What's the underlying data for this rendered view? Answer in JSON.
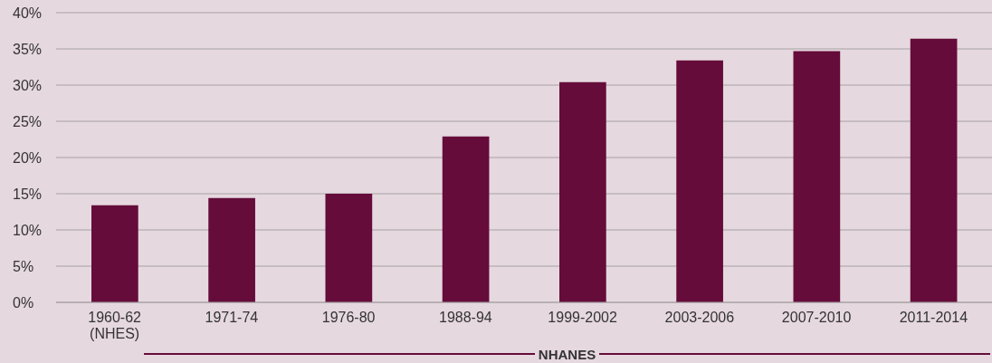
{
  "chart_data": {
    "type": "bar",
    "categories": [
      "1960-62 (NHES)",
      "1971-74",
      "1976-80",
      "1988-94",
      "1999-2002",
      "2003-2006",
      "2007-2010",
      "2011-2014"
    ],
    "values": [
      13.4,
      14.4,
      15.0,
      22.9,
      30.4,
      33.4,
      34.7,
      36.4
    ],
    "color": "#650c3a",
    "ylim": [
      0,
      40
    ],
    "yticks": [
      {
        "value": 0,
        "label": "0%"
      },
      {
        "value": 5,
        "label": "5%"
      },
      {
        "value": 10,
        "label": "10%"
      },
      {
        "value": 15,
        "label": "15%"
      },
      {
        "value": 20,
        "label": "20%"
      },
      {
        "value": 25,
        "label": "25%"
      },
      {
        "value": 30,
        "label": "30%"
      },
      {
        "value": 35,
        "label": "35%"
      },
      {
        "value": 40,
        "label": "40%"
      }
    ],
    "grid": "y",
    "annotations": [
      "NHANES"
    ]
  }
}
